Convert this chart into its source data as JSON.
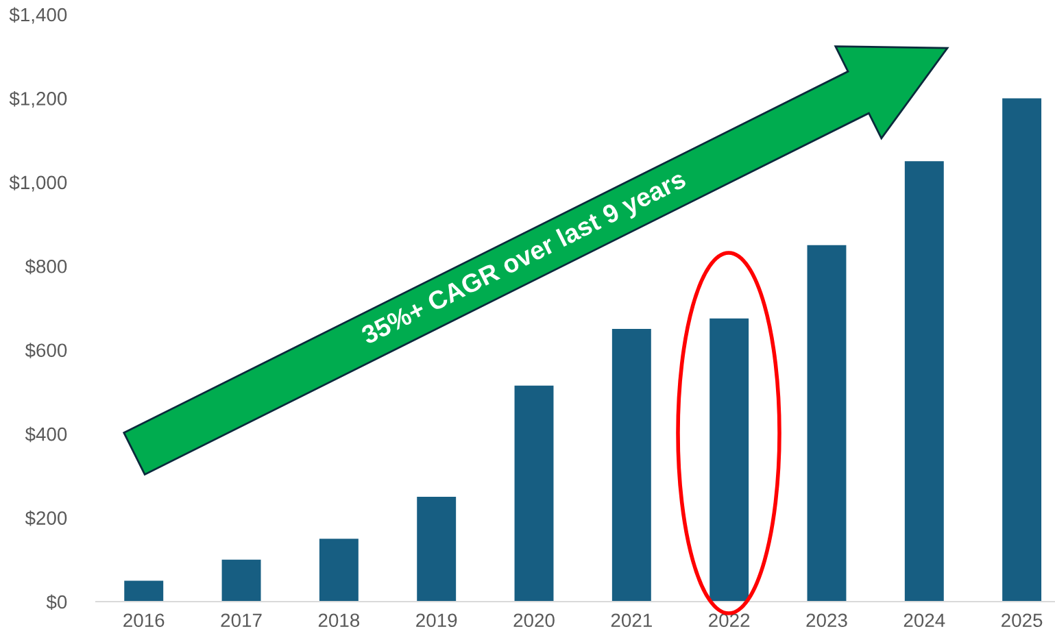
{
  "chart_data": {
    "type": "bar",
    "categories": [
      "2016",
      "2017",
      "2018",
      "2019",
      "2020",
      "2021",
      "2022",
      "2023",
      "2024",
      "2025"
    ],
    "values": [
      50,
      100,
      150,
      250,
      515,
      650,
      675,
      850,
      1050,
      1200
    ],
    "color": "#175e82",
    "ylim": [
      0,
      1400
    ],
    "yticks": [
      {
        "value": 0,
        "label": "$0"
      },
      {
        "value": 200,
        "label": "$200"
      },
      {
        "value": 400,
        "label": "$400"
      },
      {
        "value": 600,
        "label": "$600"
      },
      {
        "value": 800,
        "label": "$800"
      },
      {
        "value": 1000,
        "label": "$1,000"
      },
      {
        "value": 1200,
        "label": "$1,200"
      },
      {
        "value": 1400,
        "label": "$1,400"
      }
    ],
    "grid": false,
    "annotations": [
      "35%+ CAGR over last 9 years"
    ]
  }
}
